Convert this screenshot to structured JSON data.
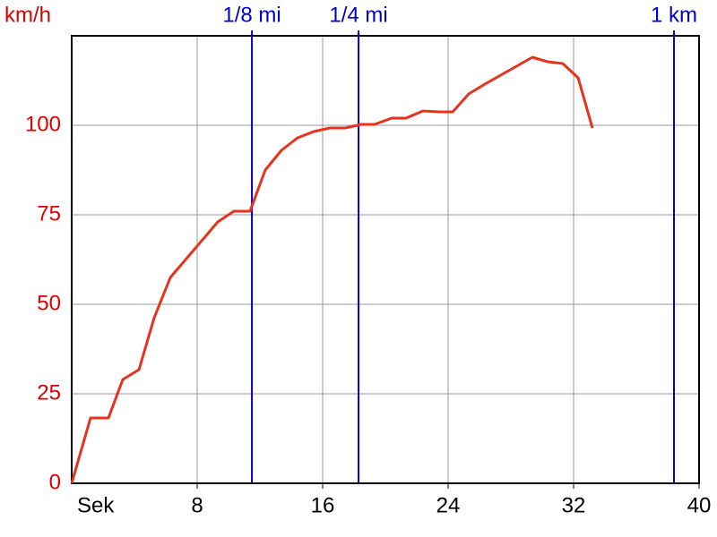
{
  "chart_data": {
    "type": "line",
    "x_label": "Sek",
    "y_label": "km/h",
    "x": [
      0,
      1.2,
      2.34,
      3.26,
      4.29,
      5.26,
      6.29,
      9.31,
      10.34,
      11.37,
      12.34,
      13.37,
      14.4,
      15.43,
      16.46,
      17.43,
      18.46,
      19.31,
      20.4,
      21.31,
      22.4,
      23.43,
      24.29,
      25.31,
      26.34,
      29.37,
      30.34,
      31.31,
      32.29,
      33.2
    ],
    "values": [
      0,
      18.25,
      18.25,
      29,
      31.75,
      46.25,
      57.5,
      73,
      76,
      76,
      87.5,
      93,
      96.5,
      98.25,
      99.25,
      99.25,
      100.25,
      100.25,
      102,
      102,
      104,
      103.75,
      103.75,
      108.75,
      111.5,
      119,
      117.75,
      117.25,
      113.25,
      99.25
    ],
    "color": "#e8321e",
    "xlim": [
      0,
      40
    ],
    "xticks": [
      8,
      16,
      24,
      32,
      40
    ],
    "ylim": [
      0,
      125
    ],
    "yticks": [
      0,
      25,
      50,
      75,
      100
    ],
    "grid": true,
    "axis_label_color": "#dd0000",
    "annotation_color": "#0000cc",
    "annotations": [
      {
        "label": "1/8 mi",
        "x": 11.49
      },
      {
        "label": "1/4 mi",
        "x": 18.29
      },
      {
        "label": "1 km",
        "x": 38.4
      }
    ]
  }
}
